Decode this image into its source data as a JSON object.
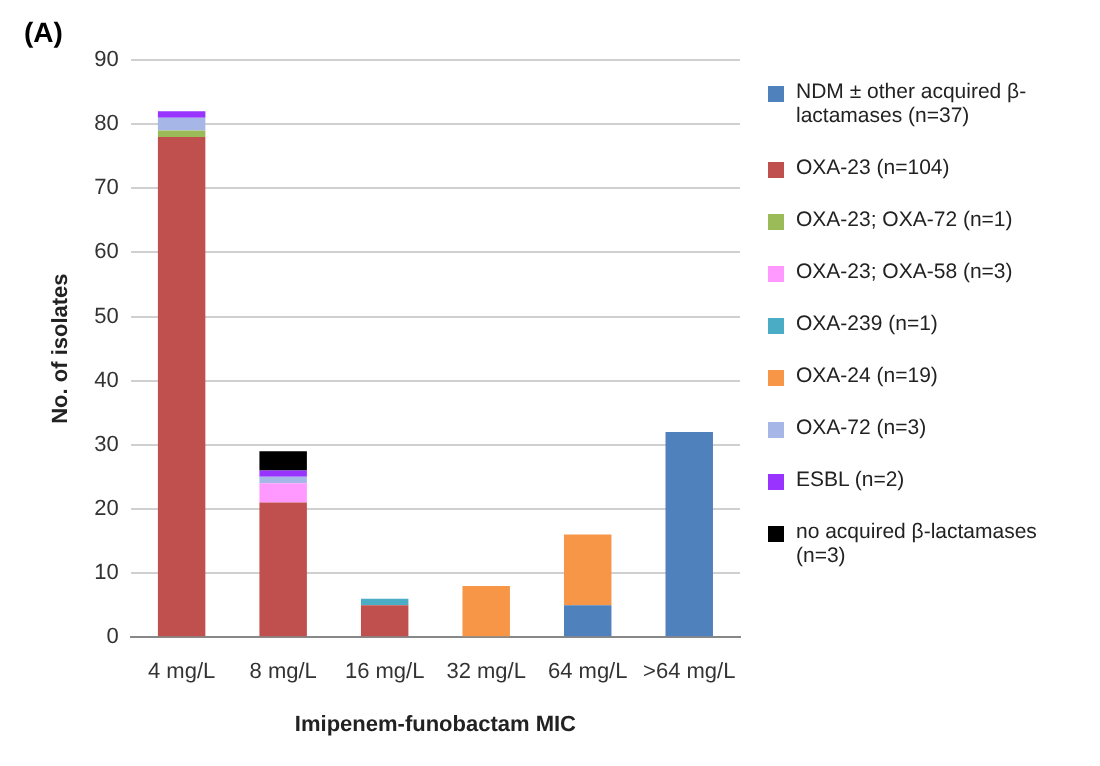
{
  "chart_data": {
    "type": "bar",
    "stacked": true,
    "xlabel": "Imipenem-funobactam MIC",
    "ylabel": "No. of isolates",
    "annotations": [
      "(A)"
    ],
    "categories": [
      "4 mg/L",
      "8 mg/L",
      "16 mg/L",
      "32 mg/L",
      "64 mg/L",
      ">64 mg/L"
    ],
    "ylim": [
      0,
      90
    ],
    "yticks": [
      0,
      10,
      20,
      30,
      40,
      50,
      60,
      70,
      80,
      90
    ],
    "grid": "y",
    "legend": "right",
    "series": [
      {
        "name": "NDM ± other acquired β-lactamases (n=37)",
        "color": "#4f81bd",
        "values": [
          0,
          0,
          0,
          0,
          5,
          32
        ]
      },
      {
        "name": "OXA-23 (n=104)",
        "color": "#c0504d",
        "values": [
          78,
          21,
          5,
          0,
          0,
          0
        ]
      },
      {
        "name": "OXA-23; OXA-72 (n=1)",
        "color": "#9bbb59",
        "values": [
          1,
          0,
          0,
          0,
          0,
          0
        ]
      },
      {
        "name": "OXA-23; OXA-58 (n=3)",
        "color": "#ff99ff",
        "values": [
          0,
          3,
          0,
          0,
          0,
          0
        ]
      },
      {
        "name": "OXA-239 (n=1)",
        "color": "#4bacc6",
        "values": [
          0,
          0,
          1,
          0,
          0,
          0
        ]
      },
      {
        "name": "OXA-24 (n=19)",
        "color": "#f79646",
        "values": [
          0,
          0,
          0,
          8,
          11,
          0
        ]
      },
      {
        "name": "OXA-72 (n=3)",
        "color": "#a6b6e6",
        "values": [
          2,
          1,
          0,
          0,
          0,
          0
        ]
      },
      {
        "name": "ESBL (n=2)",
        "color": "#9933ff",
        "values": [
          1,
          1,
          0,
          0,
          0,
          0
        ]
      },
      {
        "name": "no acquired β-lactamases (n=3)",
        "color": "#000000",
        "values": [
          0,
          3,
          0,
          0,
          0,
          0
        ]
      }
    ]
  }
}
